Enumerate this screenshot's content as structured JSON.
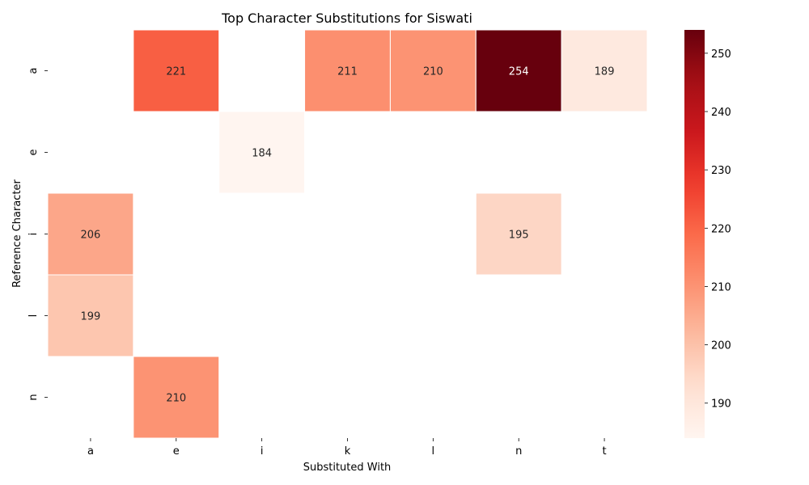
{
  "chart_data": {
    "type": "heatmap",
    "title": "Top Character Substitutions for Siswati",
    "xlabel": "Substituted With",
    "ylabel": "Reference Character",
    "x_categories": [
      "a",
      "e",
      "i",
      "k",
      "l",
      "n",
      "t"
    ],
    "y_categories": [
      "a",
      "e",
      "i",
      "l",
      "n"
    ],
    "cells": [
      {
        "y": "a",
        "x": "e",
        "value": 221
      },
      {
        "y": "a",
        "x": "k",
        "value": 211
      },
      {
        "y": "a",
        "x": "l",
        "value": 210
      },
      {
        "y": "a",
        "x": "n",
        "value": 254
      },
      {
        "y": "a",
        "x": "t",
        "value": 189
      },
      {
        "y": "e",
        "x": "i",
        "value": 184
      },
      {
        "y": "i",
        "x": "a",
        "value": 206
      },
      {
        "y": "i",
        "x": "n",
        "value": 195
      },
      {
        "y": "l",
        "x": "a",
        "value": 199
      },
      {
        "y": "n",
        "x": "e",
        "value": 210
      }
    ],
    "colormap": "Reds",
    "colorbar": {
      "min": 184,
      "max": 254,
      "ticks": [
        190,
        200,
        210,
        220,
        230,
        240,
        250
      ]
    }
  }
}
